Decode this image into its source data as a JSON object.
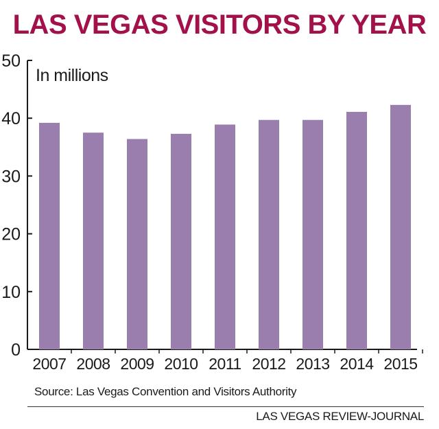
{
  "header": {
    "title": "LAS VEGAS VISITORS BY YEAR",
    "title_color": "#a3114a"
  },
  "chart_data": {
    "type": "bar",
    "categories": [
      "2007",
      "2008",
      "2009",
      "2010",
      "2011",
      "2012",
      "2013",
      "2014",
      "2015"
    ],
    "values": [
      39.2,
      37.5,
      36.4,
      37.3,
      38.9,
      39.7,
      39.7,
      41.1,
      42.3
    ],
    "ylabel": "In millions",
    "xlabel": "",
    "ylim": [
      0,
      50
    ],
    "yticks": [
      0,
      10,
      20,
      30,
      40,
      50
    ],
    "bar_color": "#9a7eae",
    "grid": false
  },
  "footer": {
    "source": "Source: Las Vegas Convention and Visitors Authority",
    "credit": "LAS VEGAS REVIEW-JOURNAL"
  }
}
